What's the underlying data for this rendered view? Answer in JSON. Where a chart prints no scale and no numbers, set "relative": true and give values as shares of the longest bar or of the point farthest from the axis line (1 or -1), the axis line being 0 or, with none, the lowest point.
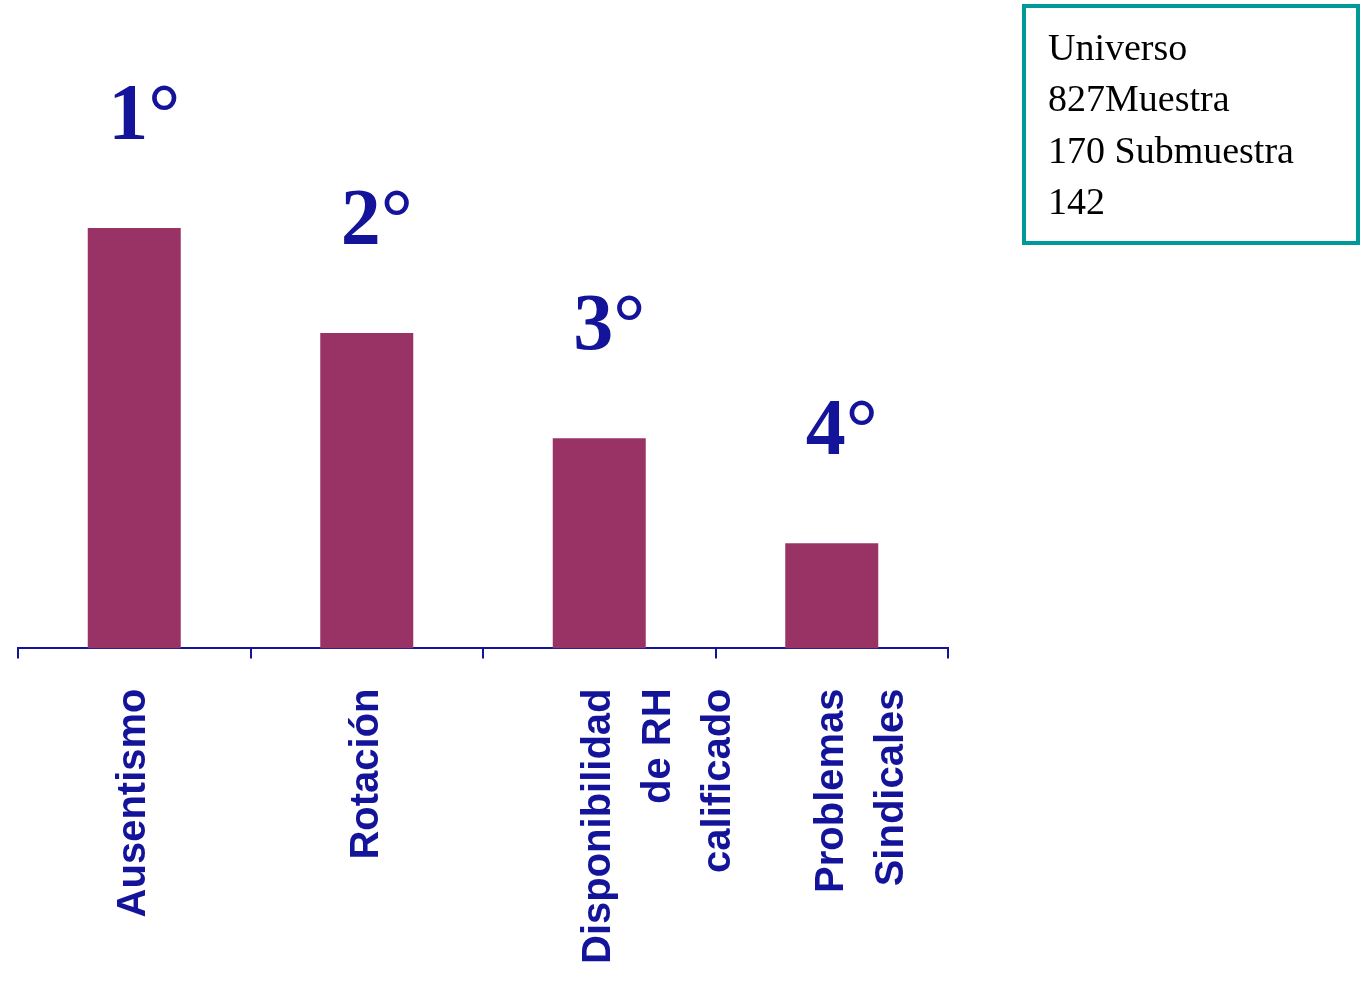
{
  "chart_data": {
    "type": "bar",
    "relative": true,
    "categories": [
      "Ausentismo",
      "Rotación",
      "Disponibilidad\nde RH\ncalificado",
      "Problemas\nSindicales"
    ],
    "values": [
      1,
      0.75,
      0.5,
      0.25
    ],
    "color": "#993366",
    "annotations": [
      "Universo\n827Muestra\n170 Submuestra\n142",
      {
        "text": "1°",
        "x": "Ausentismo",
        "y": 1
      },
      {
        "text": "2°",
        "x": "Rotación",
        "y": 0.75
      },
      {
        "text": "3°",
        "x": "Disponibilidad\nde RH\ncalificado",
        "y": 0.5
      },
      {
        "text": "4°",
        "x": "Problemas\nSindicales",
        "y": 0.25
      }
    ],
    "legend": false,
    "grid": false
  }
}
